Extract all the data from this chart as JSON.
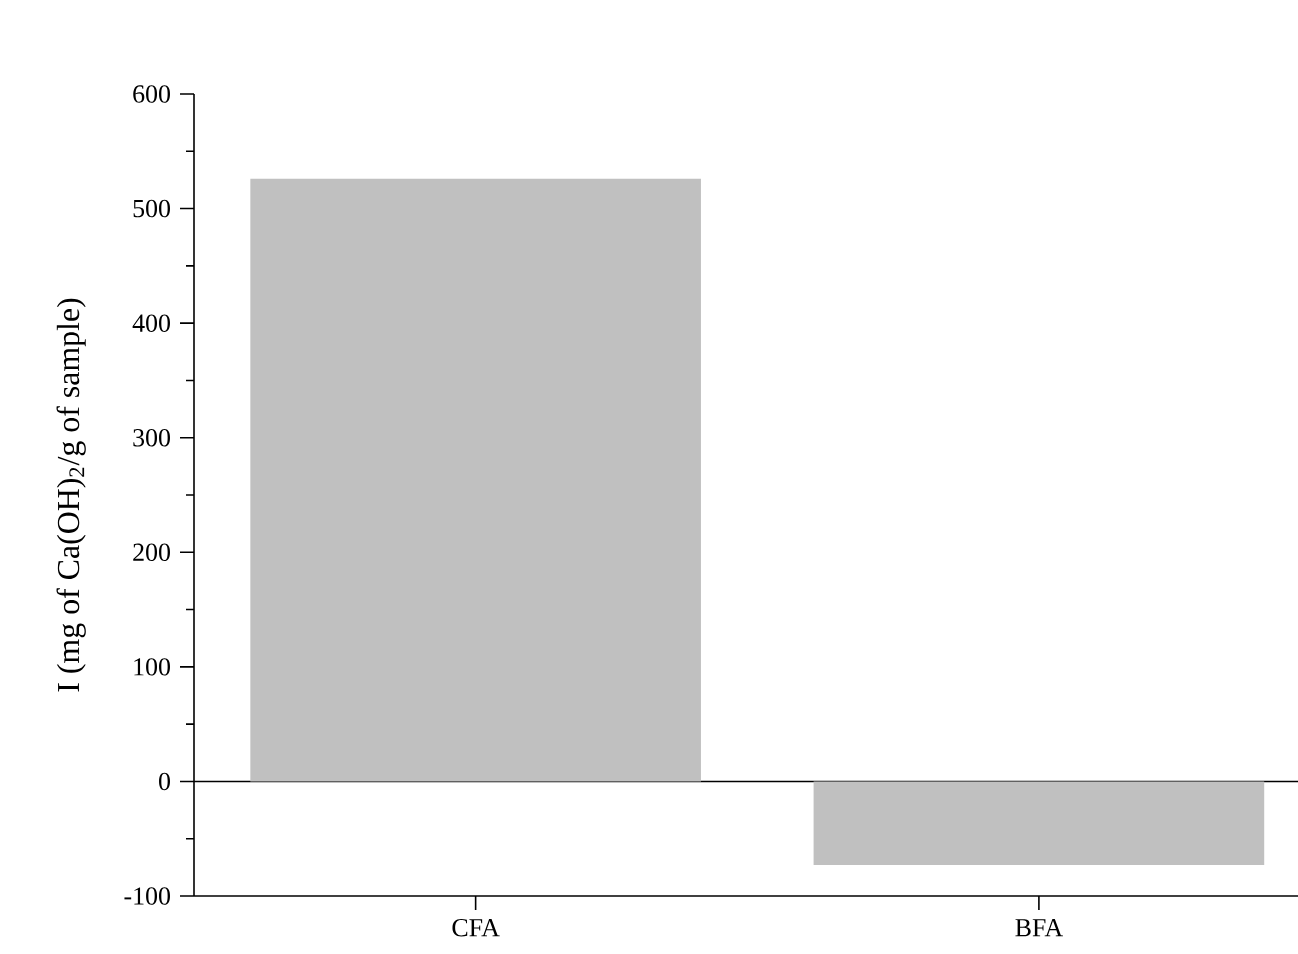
{
  "chart_data": {
    "type": "bar",
    "ylabel": "I (mg of Ca(OH)$_{2}$/g of sample)",
    "categories": [
      "CFA",
      "BFA"
    ],
    "values": [
      526,
      -73
    ],
    "color": "#c0c0c0",
    "ylim": [
      -100,
      600
    ],
    "yticks": [
      -100,
      0,
      100,
      200,
      300,
      400,
      500,
      600
    ]
  }
}
